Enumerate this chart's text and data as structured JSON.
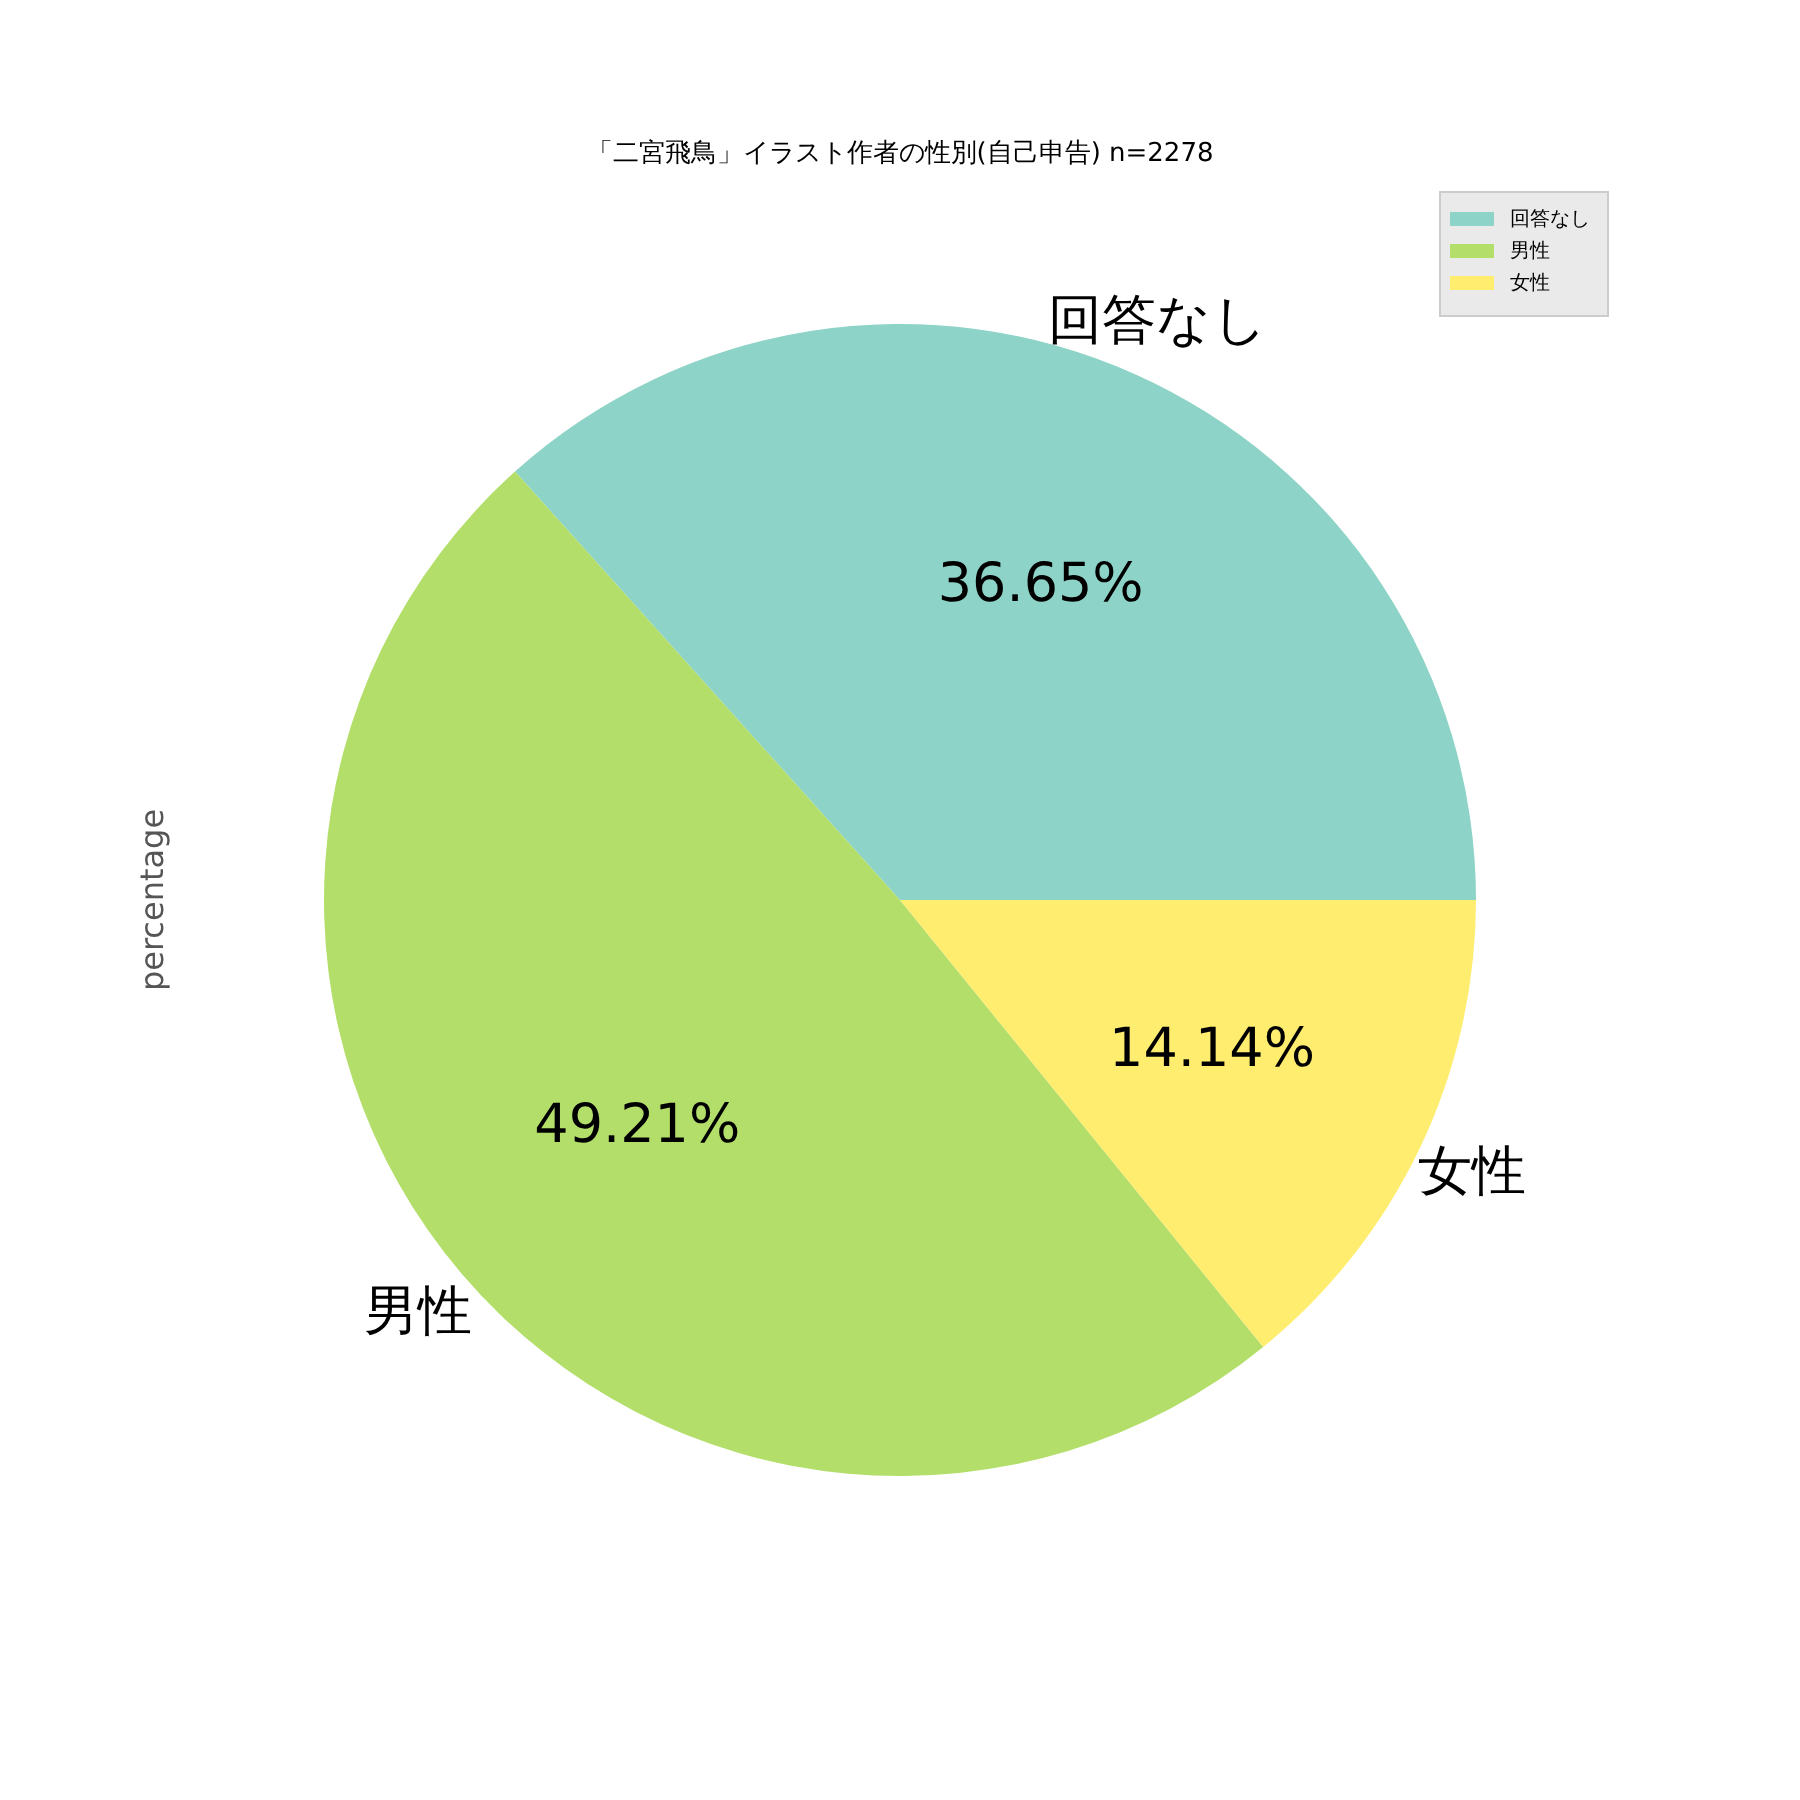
{
  "chart_data": {
    "type": "pie",
    "title": "「二宮飛鳥」イラスト作者の性別(自己申告) n=2278",
    "ylabel": "percentage",
    "categories": [
      "回答なし",
      "男性",
      "女性"
    ],
    "values": [
      36.65,
      49.21,
      14.14
    ],
    "value_labels": [
      "36.65%",
      "49.21%",
      "14.14%"
    ],
    "colors": [
      "#8dd3c7",
      "#b3de69",
      "#ffed6f"
    ],
    "legend": "top right"
  }
}
